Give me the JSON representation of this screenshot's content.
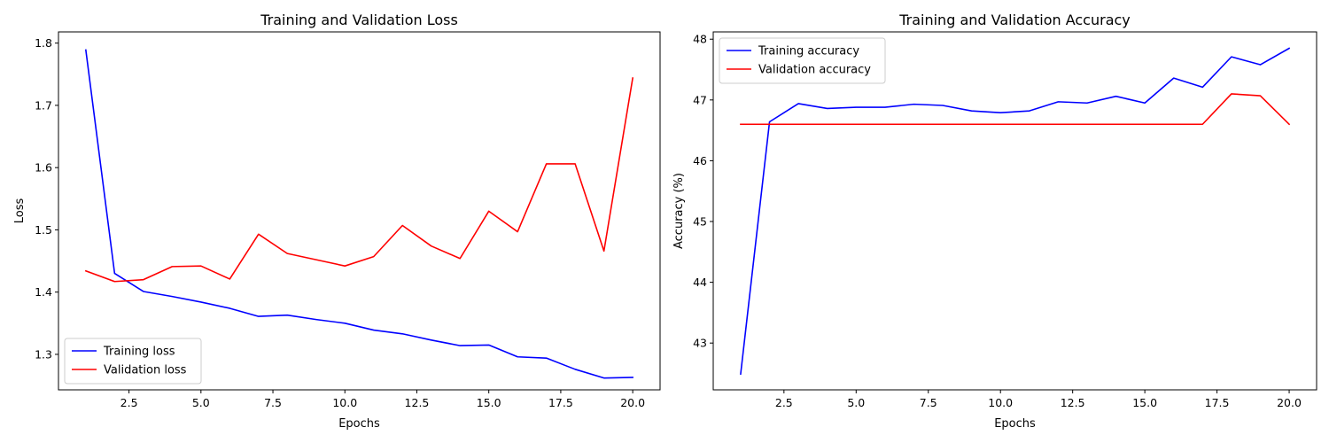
{
  "chart_data": [
    {
      "type": "line",
      "title": "Training and Validation Loss",
      "xlabel": "Epochs",
      "ylabel": "Loss",
      "x": [
        1,
        2,
        3,
        4,
        5,
        6,
        7,
        8,
        9,
        10,
        11,
        12,
        13,
        14,
        15,
        16,
        17,
        18,
        19,
        20
      ],
      "xlim": [
        0.05,
        20.95
      ],
      "ylim": [
        1.243,
        1.818
      ],
      "xticks": [
        2.5,
        5.0,
        7.5,
        10.0,
        12.5,
        15.0,
        17.5,
        20.0
      ],
      "xtick_labels": [
        "2.5",
        "5.0",
        "7.5",
        "10.0",
        "12.5",
        "15.0",
        "17.5",
        "20.0"
      ],
      "yticks": [
        1.3,
        1.4,
        1.5,
        1.6,
        1.7,
        1.8
      ],
      "ytick_labels": [
        "1.3",
        "1.4",
        "1.5",
        "1.6",
        "1.7",
        "1.8"
      ],
      "grid": false,
      "legend_position": "bottom-left",
      "series": [
        {
          "name": "Training loss",
          "color": "#0000ff",
          "values": [
            1.789,
            1.43,
            1.401,
            1.393,
            1.384,
            1.374,
            1.361,
            1.363,
            1.356,
            1.35,
            1.339,
            1.333,
            1.323,
            1.314,
            1.315,
            1.296,
            1.294,
            1.276,
            1.262,
            1.263
          ]
        },
        {
          "name": "Validation loss",
          "color": "#ff0000",
          "values": [
            1.434,
            1.417,
            1.42,
            1.441,
            1.442,
            1.421,
            1.493,
            1.462,
            1.452,
            1.442,
            1.457,
            1.507,
            1.474,
            1.454,
            1.53,
            1.497,
            1.606,
            1.606,
            1.466,
            1.744
          ]
        }
      ]
    },
    {
      "type": "line",
      "title": "Training and Validation Accuracy",
      "xlabel": "Epochs",
      "ylabel": "Accuracy (%)",
      "x": [
        1,
        2,
        3,
        4,
        5,
        6,
        7,
        8,
        9,
        10,
        11,
        12,
        13,
        14,
        15,
        16,
        17,
        18,
        19,
        20
      ],
      "xlim": [
        0.05,
        20.95
      ],
      "ylim": [
        42.23,
        48.12
      ],
      "xticks": [
        2.5,
        5.0,
        7.5,
        10.0,
        12.5,
        15.0,
        17.5,
        20.0
      ],
      "xtick_labels": [
        "2.5",
        "5.0",
        "7.5",
        "10.0",
        "12.5",
        "15.0",
        "17.5",
        "20.0"
      ],
      "yticks": [
        43,
        44,
        45,
        46,
        47,
        48
      ],
      "ytick_labels": [
        "43",
        "44",
        "45",
        "46",
        "47",
        "48"
      ],
      "grid": false,
      "legend_position": "top-left",
      "series": [
        {
          "name": "Training accuracy",
          "color": "#0000ff",
          "values": [
            42.49,
            46.64,
            46.94,
            46.86,
            46.88,
            46.88,
            46.93,
            46.91,
            46.82,
            46.79,
            46.82,
            46.97,
            46.95,
            47.06,
            46.95,
            47.36,
            47.21,
            47.71,
            47.58,
            47.85
          ]
        },
        {
          "name": "Validation accuracy",
          "color": "#ff0000",
          "values": [
            46.6,
            46.6,
            46.6,
            46.6,
            46.6,
            46.6,
            46.6,
            46.6,
            46.6,
            46.6,
            46.6,
            46.6,
            46.6,
            46.6,
            46.6,
            46.6,
            46.6,
            47.1,
            47.07,
            46.6
          ]
        }
      ]
    }
  ]
}
